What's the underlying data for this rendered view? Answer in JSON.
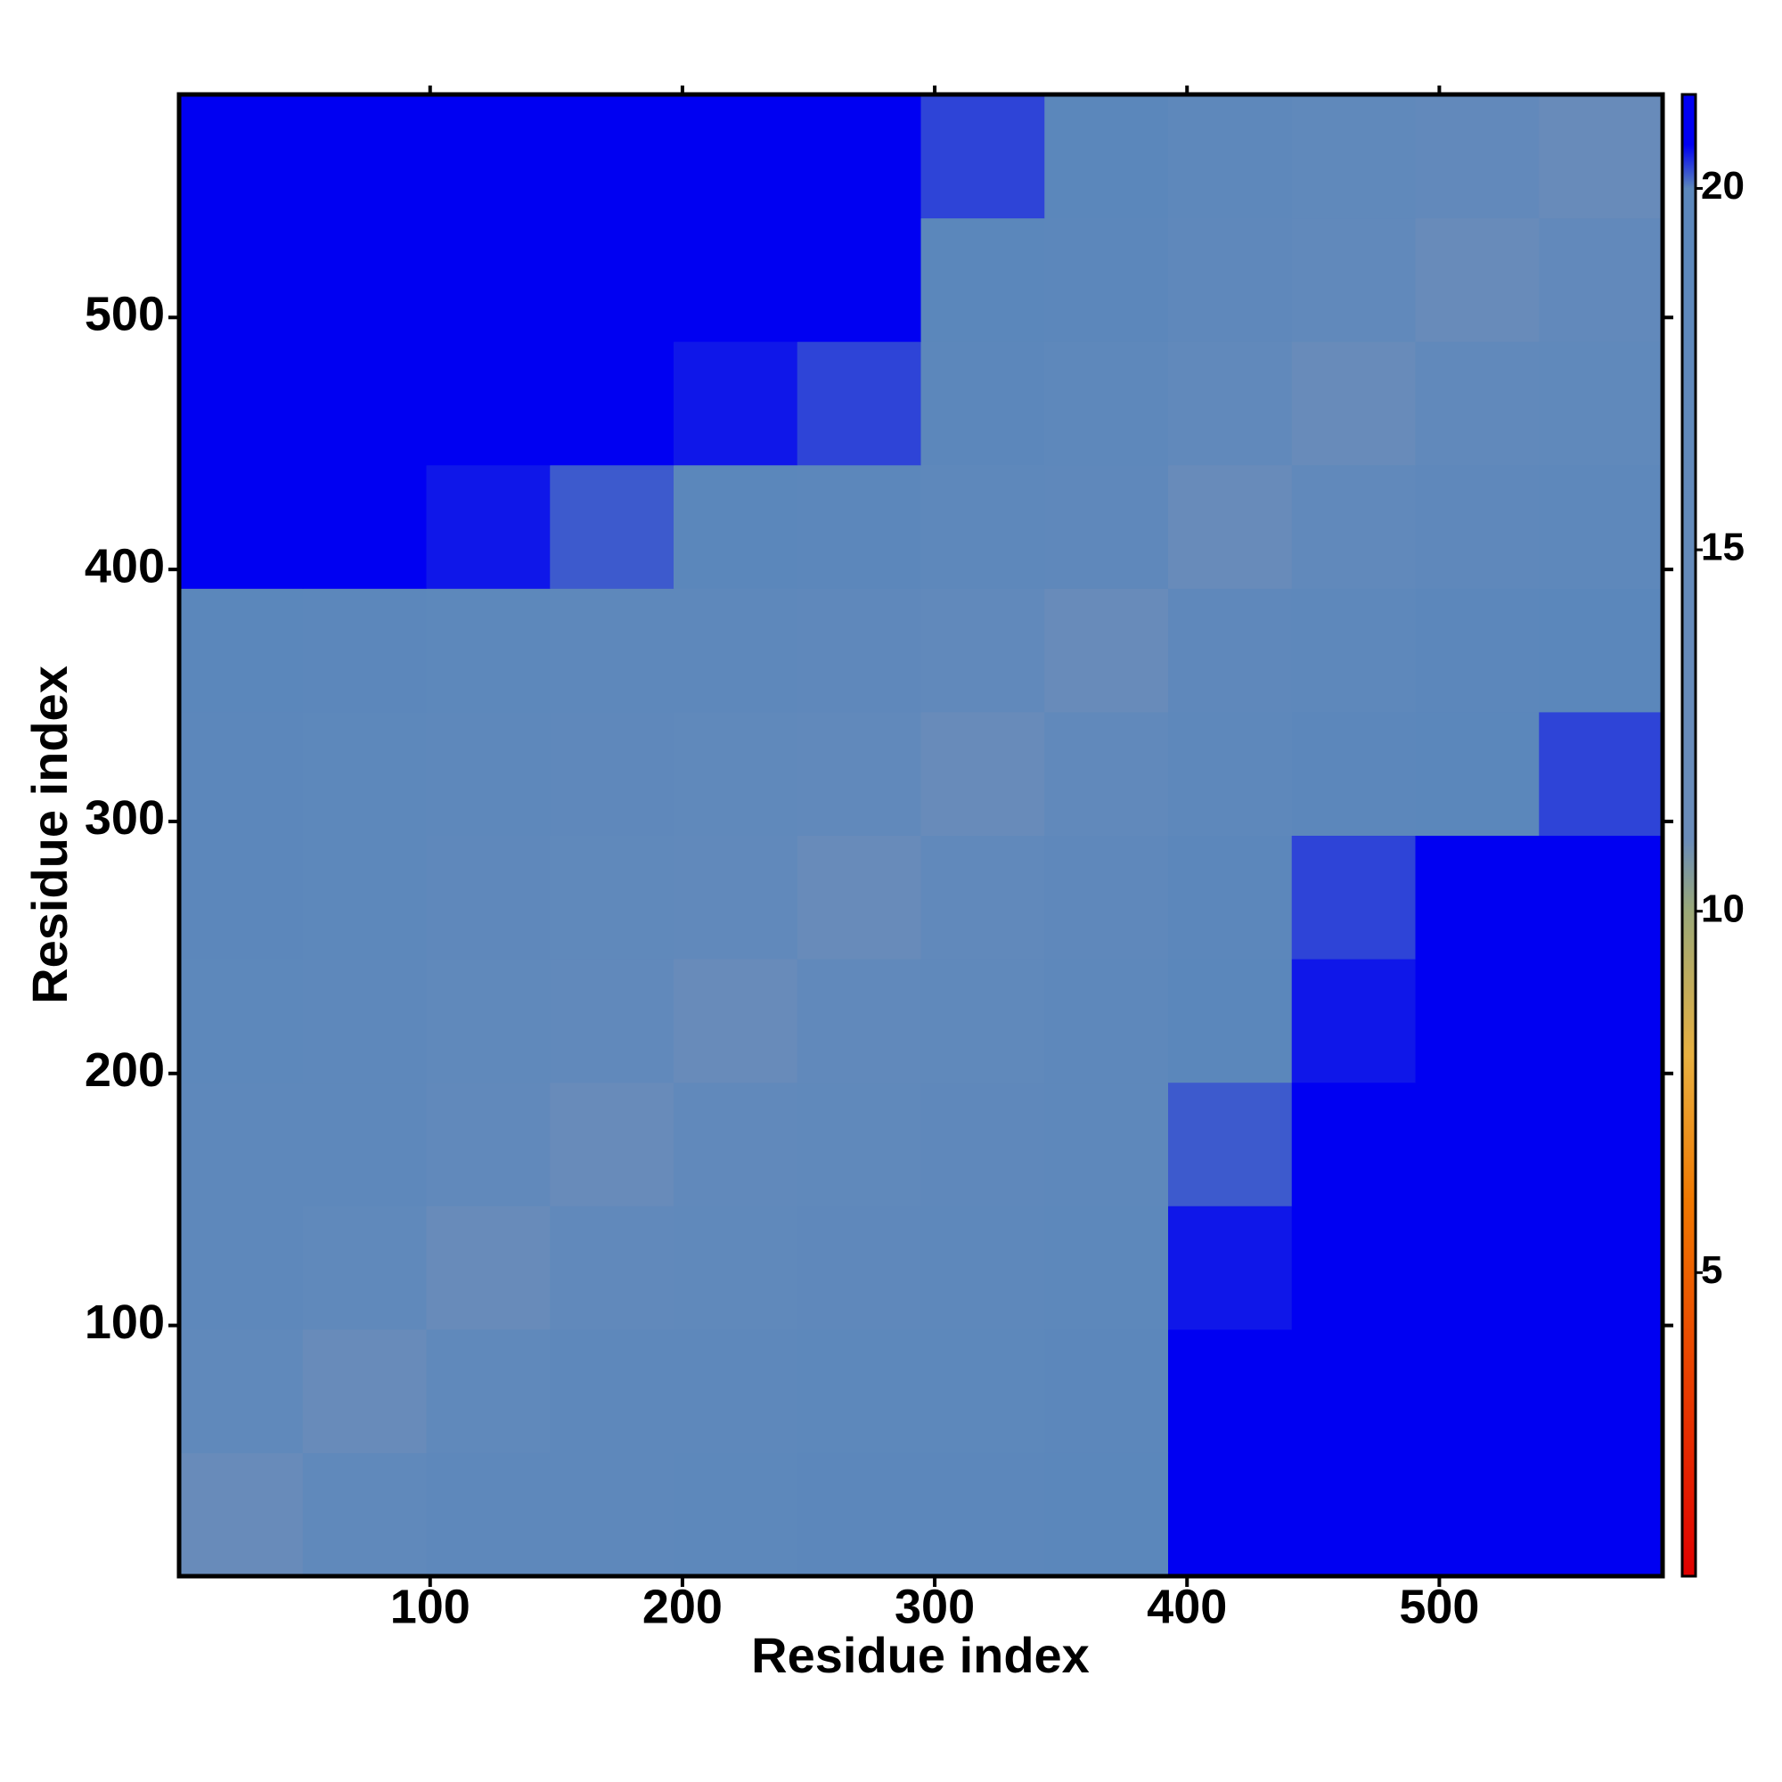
{
  "chart_data": {
    "type": "heatmap",
    "xlabel": "Residue index",
    "ylabel": "Residue index",
    "xlim": [
      0.5,
      588.5
    ],
    "ylim": [
      0.5,
      588.5
    ],
    "xticks": [
      100,
      200,
      300,
      400,
      500
    ],
    "yticks": [
      100,
      200,
      300,
      400,
      500
    ],
    "clim": [
      0.8,
      21.3
    ],
    "cticks": [
      5,
      10,
      15,
      20
    ],
    "colorscale": [
      [
        0.8,
        "#e00000"
      ],
      [
        6,
        "#f07800"
      ],
      [
        8,
        "#e8b040"
      ],
      [
        10,
        "#9aa878"
      ],
      [
        11,
        "#6a8cba"
      ],
      [
        20,
        "#5b87bb"
      ],
      [
        20.6,
        "#0000f2"
      ],
      [
        21.3,
        "#0000f2"
      ]
    ],
    "values": [
      [
        12,
        17,
        18,
        18.5,
        19,
        19.5,
        19.5,
        20,
        20.8,
        20.9,
        20.9,
        20.9
      ],
      [
        17,
        12,
        17,
        18,
        18.5,
        19,
        19,
        19.5,
        20.8,
        20.9,
        20.9,
        20.9
      ],
      [
        18,
        17,
        12,
        16.5,
        17,
        17.5,
        18,
        19,
        20.5,
        20.8,
        20.9,
        20.9
      ],
      [
        18.5,
        18,
        16.5,
        12,
        16.5,
        17,
        17.5,
        18.5,
        20.2,
        20.7,
        20.8,
        20.9
      ],
      [
        19,
        18.5,
        17,
        16.5,
        12,
        16.5,
        17,
        18,
        19.8,
        20.5,
        20.7,
        20.8
      ],
      [
        19.5,
        19,
        17.5,
        17,
        16.5,
        12,
        16.5,
        17.5,
        19.5,
        20.3,
        20.6,
        20.8
      ],
      [
        19.5,
        19,
        18,
        17.5,
        17,
        16.5,
        12,
        16.5,
        18.5,
        19.5,
        20,
        20.3
      ],
      [
        20,
        19.5,
        19,
        18.5,
        18,
        17.5,
        16.5,
        12,
        17.5,
        18.5,
        19.5,
        20
      ],
      [
        20.8,
        20.8,
        20.5,
        20.2,
        19.8,
        19.5,
        18.5,
        17.5,
        12,
        16.5,
        17.5,
        18
      ],
      [
        20.9,
        20.9,
        20.8,
        20.7,
        20.5,
        20.3,
        19.5,
        18.5,
        16.5,
        12,
        16.5,
        17
      ],
      [
        20.9,
        20.9,
        20.9,
        20.8,
        20.7,
        20.6,
        20,
        19.5,
        17.5,
        16.5,
        12,
        16
      ],
      [
        20.9,
        20.9,
        20.9,
        20.9,
        20.8,
        20.8,
        20.3,
        20,
        18,
        17,
        16,
        12
      ]
    ]
  }
}
